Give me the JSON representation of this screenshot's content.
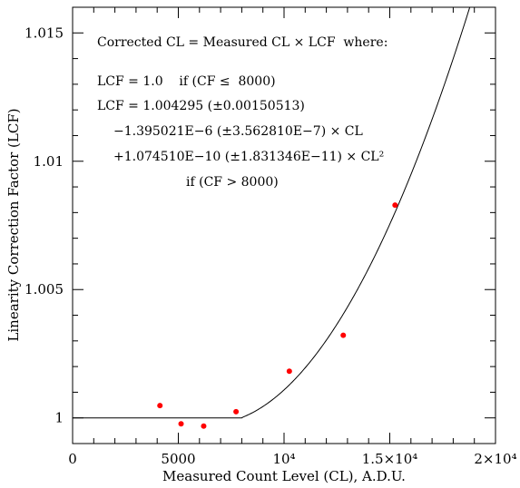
{
  "chart_data": {
    "type": "scatter",
    "xlabel": "Measured Count Level (CL), A.D.U.",
    "ylabel": "Linearity Correction Factor (LCF)",
    "xlim": [
      0,
      20000
    ],
    "ylim": [
      0.999,
      1.016
    ],
    "x_ticks": [
      {
        "value": 0,
        "label": "0"
      },
      {
        "value": 5000,
        "label": "5000"
      },
      {
        "value": 10000,
        "label": "10⁴"
      },
      {
        "value": 15000,
        "label": "1.5×10⁴"
      },
      {
        "value": 20000,
        "label": "2×10⁴"
      }
    ],
    "y_ticks": [
      {
        "value": 1.0,
        "label": "1"
      },
      {
        "value": 1.005,
        "label": "1.005"
      },
      {
        "value": 1.01,
        "label": "1.01"
      },
      {
        "value": 1.015,
        "label": "1.015"
      }
    ],
    "points": {
      "color": "#ff0000",
      "x": [
        4130,
        5130,
        6200,
        7730,
        10250,
        12800,
        15250
      ],
      "y": [
        1.00048,
        0.99977,
        0.99968,
        1.00024,
        1.00182,
        1.00322,
        1.00829
      ]
    },
    "fit": {
      "threshold": 8000,
      "low_value": 1.0,
      "a": 1.004295,
      "b": -1.395021e-06,
      "c": 1.07451e-10
    },
    "grid": false,
    "legend": "none",
    "annotation_lines": [
      "Corrected CL = Measured CL × LCF  where:",
      "LCF = 1.0    if (CF ≤  8000)",
      "LCF = 1.004295 (±0.00150513)",
      "−1.395021E−6 (±3.562810E−7) × CL",
      "+1.074510E−10 (±1.831346E−11) × CL²",
      "if (CF > 8000)"
    ]
  }
}
